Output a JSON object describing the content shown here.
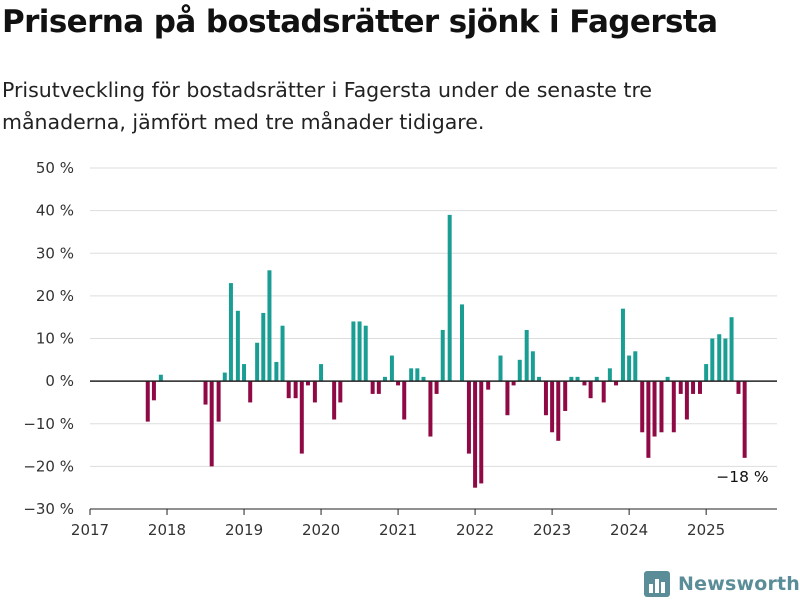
{
  "title": "Priserna på bostadsrätter sjönk i Fagersta",
  "subtitle": "Prisutveckling för bostadsrätter i Fagersta under de senaste tre månaderna, jämfört med tre månader tidigare.",
  "brand": {
    "name": "Newsworthy",
    "icon": "bar-chart-logo-icon",
    "color": "#5a8d98"
  },
  "colors": {
    "positive": "#1a9e94",
    "negative": "#8f0a45",
    "grid": "#dddddd",
    "axis": "#222222"
  },
  "chart_data": {
    "type": "bar",
    "x_unit": "year",
    "xlim": [
      2017,
      2025.92
    ],
    "ylim": [
      -30,
      50
    ],
    "x_ticks": [
      "2017",
      "2018",
      "2019",
      "2020",
      "2021",
      "2022",
      "2023",
      "2024",
      "2025"
    ],
    "y_ticks": [
      "50 %",
      "40 %",
      "30 %",
      "20 %",
      "10 %",
      "0 %",
      "−10 %",
      "−20 %",
      "−30 %"
    ],
    "grid": true,
    "annotation": {
      "text": "−18 %",
      "x": 2025.5,
      "y": -18
    },
    "series": [
      {
        "x": [
          2017.75,
          2017.83,
          2017.92,
          2018.5,
          2018.58,
          2018.67,
          2018.75,
          2018.83,
          2018.92,
          2019.0,
          2019.08,
          2019.17,
          2019.25,
          2019.33,
          2019.42,
          2019.5,
          2019.58,
          2019.67,
          2019.75,
          2019.83,
          2019.92,
          2020.0,
          2020.17,
          2020.25,
          2020.42,
          2020.5,
          2020.58,
          2020.67,
          2020.75,
          2020.83,
          2020.92,
          2021.0,
          2021.08,
          2021.17,
          2021.25,
          2021.33,
          2021.42,
          2021.5,
          2021.58,
          2021.67,
          2021.83,
          2021.92,
          2022.0,
          2022.08,
          2022.17,
          2022.33,
          2022.42,
          2022.5,
          2022.58,
          2022.67,
          2022.75,
          2022.83,
          2022.92,
          2023.0,
          2023.08,
          2023.17,
          2023.25,
          2023.33,
          2023.42,
          2023.5,
          2023.58,
          2023.67,
          2023.75,
          2023.83,
          2023.92,
          2024.0,
          2024.08,
          2024.17,
          2024.25,
          2024.33,
          2024.42,
          2024.5,
          2024.58,
          2024.67,
          2024.75,
          2024.83,
          2024.92,
          2025.0,
          2025.08,
          2025.17,
          2025.25,
          2025.33,
          2025.42,
          2025.5
        ],
        "values": [
          -9.5,
          -4.5,
          1.5,
          -5.5,
          -20,
          -9.5,
          2,
          23,
          16.5,
          4,
          -5,
          9,
          16,
          26,
          4.5,
          13,
          -4,
          -4,
          -17,
          -1,
          -5,
          4,
          -9,
          -5,
          14,
          14,
          13,
          -3,
          -3,
          1,
          6,
          -1,
          -9,
          3,
          3,
          1,
          -13,
          -3,
          12,
          39,
          18,
          -17,
          -25,
          -24,
          -2,
          6,
          -8,
          -1,
          5,
          12,
          7,
          1,
          -8,
          -12,
          -14,
          -7,
          1,
          1,
          -1,
          -4,
          1,
          -5,
          3,
          -1,
          17,
          6,
          7,
          -12,
          -18,
          -13,
          -12,
          1,
          -12,
          -3,
          -9,
          -3,
          -3,
          4,
          10,
          11,
          10,
          15,
          -3,
          -18
        ]
      }
    ]
  }
}
